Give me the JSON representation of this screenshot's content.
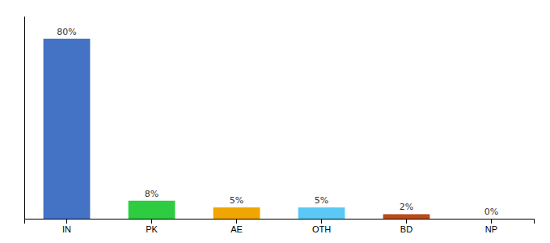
{
  "chart_data": {
    "type": "bar",
    "categories": [
      "IN",
      "PK",
      "AE",
      "OTH",
      "BD",
      "NP"
    ],
    "values": [
      80,
      8,
      5,
      5,
      2,
      0
    ],
    "value_labels": [
      "80%",
      "8%",
      "5%",
      "5%",
      "2%",
      "0%"
    ],
    "colors": [
      "#4472c4",
      "#2ecc40",
      "#f0a500",
      "#5bc8f5",
      "#b94a1a",
      "#bbbbbb"
    ],
    "ylim": [
      0,
      90
    ],
    "data_labels": true,
    "tick_labels": "x"
  }
}
